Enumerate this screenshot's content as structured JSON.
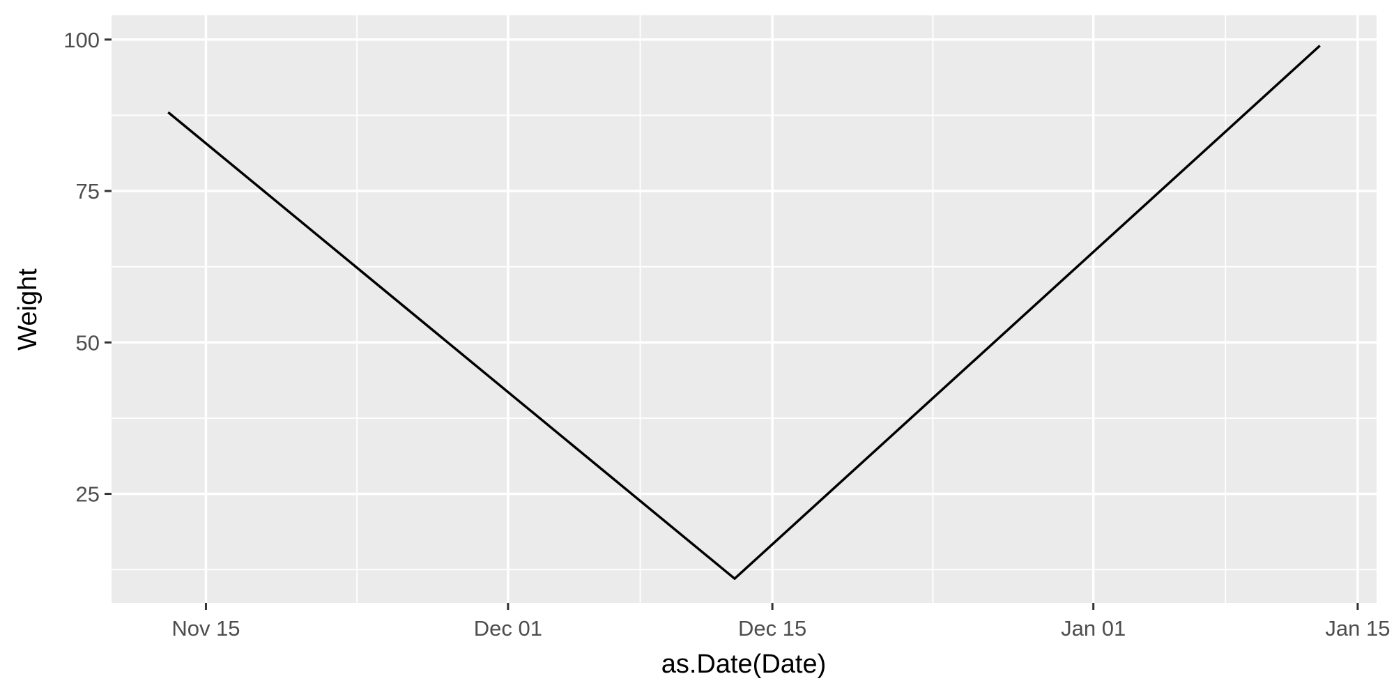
{
  "chart_data": {
    "type": "line",
    "title": "",
    "xlabel": "as.Date(Date)",
    "ylabel": "Weight",
    "x_axis_type": "date",
    "x_ticks": [
      "2023-11-15",
      "2023-12-01",
      "2023-12-15",
      "2024-01-01",
      "2024-01-15"
    ],
    "x_tick_labels": [
      "Nov 15",
      "Dec 01",
      "Dec 15",
      "Jan 01",
      "Jan 15"
    ],
    "xlim": [
      "2023-11-10",
      "2024-01-16"
    ],
    "y_ticks": [
      25,
      50,
      75,
      100
    ],
    "y_tick_labels": [
      "25",
      "50",
      "75",
      "100"
    ],
    "ylim": [
      7,
      104
    ],
    "grid": true,
    "legend": "none",
    "series": [
      {
        "x": [
          "2023-11-13",
          "2023-12-13",
          "2024-01-13"
        ],
        "values": [
          88,
          11,
          99
        ]
      }
    ],
    "colors": {
      "panel_background": "#ebebeb",
      "grid": "#ffffff",
      "line": "#000000",
      "tick_label": "#4d4d4d",
      "tick_mark": "#333333"
    }
  }
}
